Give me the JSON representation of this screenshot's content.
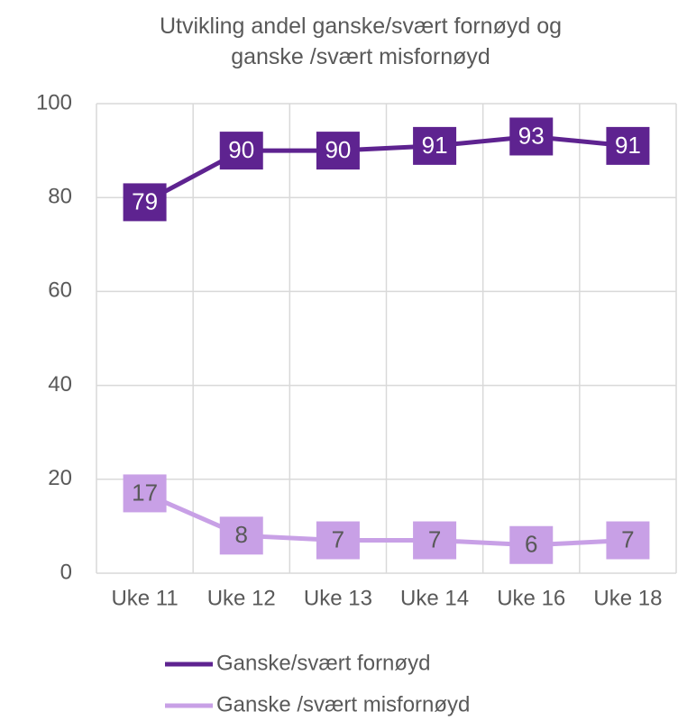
{
  "chart_data": {
    "type": "line",
    "title": "Utvikling andel ganske/svært fornøyd og ganske /svært misfornøyd",
    "categories": [
      "Uke 11",
      "Uke 12",
      "Uke 13",
      "Uke 14",
      "Uke 16",
      "Uke 18"
    ],
    "series": [
      {
        "name": "Ganske/svært fornøyd",
        "color": "#5e2390",
        "values": [
          79,
          90,
          90,
          91,
          93,
          91
        ]
      },
      {
        "name": "Ganske /svært misfornøyd",
        "color": "#c8a0e6",
        "values": [
          17,
          8,
          7,
          7,
          6,
          7
        ]
      }
    ],
    "ylim": [
      0,
      100
    ],
    "yticks": [
      0,
      20,
      40,
      60,
      80,
      100
    ],
    "grid": true,
    "legend": "bottom"
  }
}
